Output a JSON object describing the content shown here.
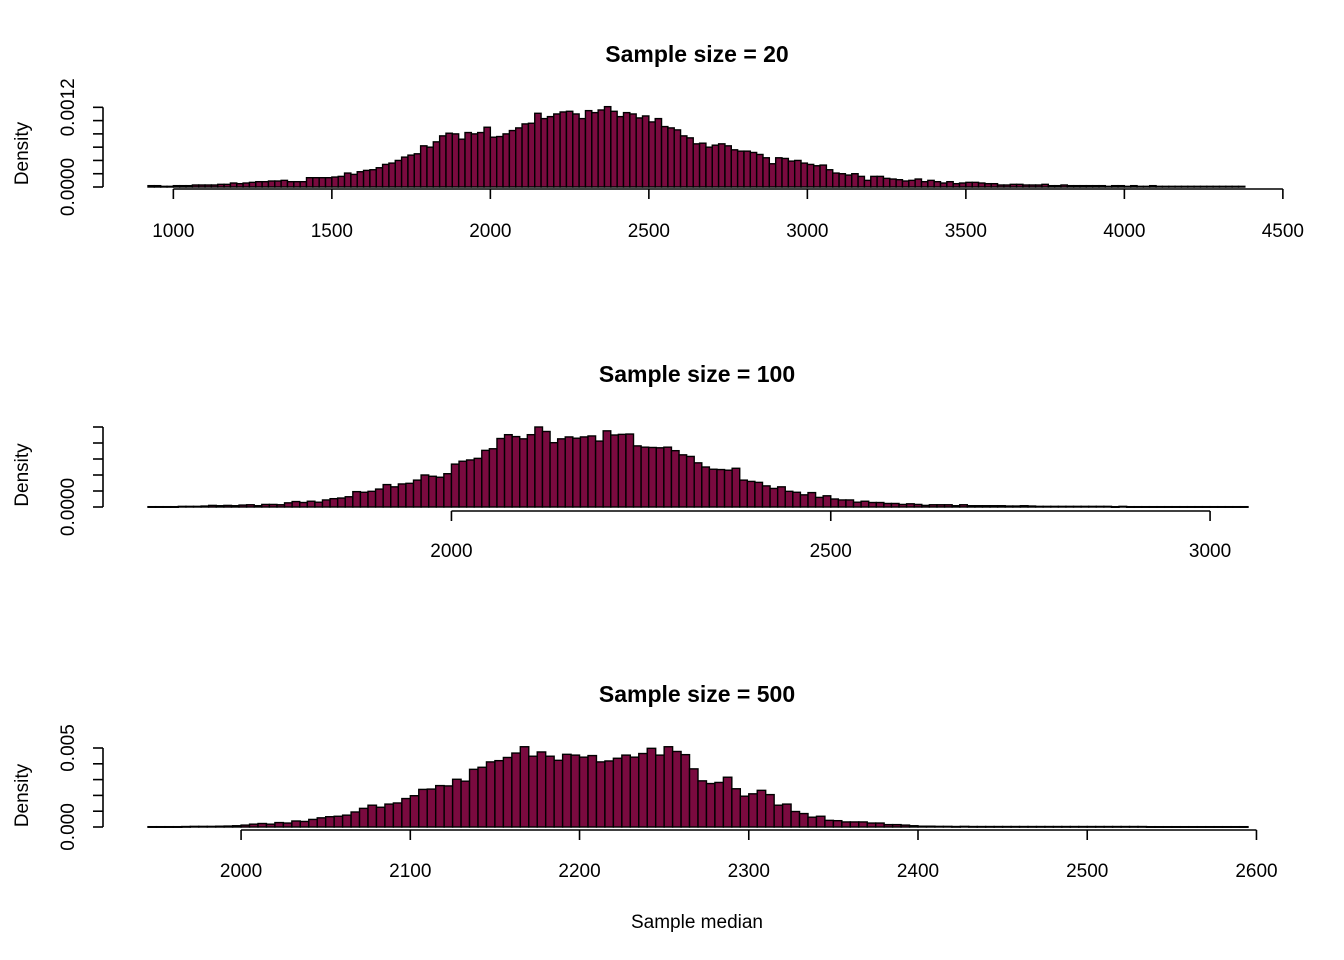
{
  "figure": {
    "xlabel": "Sample median",
    "bar_color": "#7a0a3f",
    "edge_color": "#000000"
  },
  "chart_data": [
    {
      "type": "histogram",
      "title": "Sample size = 20",
      "xlabel": "",
      "ylabel": "Density",
      "x_ticks": [
        1000,
        1500,
        2000,
        2500,
        3000,
        3500,
        4000,
        4500
      ],
      "x_tick_labels": [
        "1000",
        "1500",
        "2000",
        "2500",
        "3000",
        "3500",
        "4000",
        "4500"
      ],
      "y_ticks": [
        0,
        0.0002,
        0.0004,
        0.0006,
        0.0008,
        0.001,
        0.0012
      ],
      "y_tick_labels": [
        "0.0000",
        "",
        "",
        "",
        "",
        "",
        "0.0012"
      ],
      "xlim": [
        920,
        4390
      ],
      "ylim": [
        0,
        0.00125
      ],
      "bin_start": 920,
      "bin_width": 20,
      "values": [
        2e-05,
        2e-05,
        1e-05,
        1e-05,
        2e-05,
        2e-05,
        2e-05,
        3e-05,
        3e-05,
        3e-05,
        3e-05,
        4e-05,
        4e-05,
        6e-05,
        5e-05,
        6e-05,
        7e-05,
        8e-05,
        8e-05,
        9e-05,
        9e-05,
        0.0001,
        8e-05,
        8e-05,
        8e-05,
        0.00014,
        0.00014,
        0.00014,
        0.00014,
        0.00015,
        0.00016,
        0.00021,
        0.00019,
        0.00023,
        0.00025,
        0.00026,
        0.00029,
        0.00034,
        0.00036,
        0.0004,
        0.00045,
        0.00048,
        0.0005,
        0.00062,
        0.0006,
        0.00068,
        0.00077,
        0.00081,
        0.0008,
        0.00072,
        0.00082,
        0.0008,
        0.00082,
        0.0009,
        0.00075,
        0.00076,
        0.0008,
        0.00085,
        0.00089,
        0.00095,
        0.00096,
        0.00111,
        0.00103,
        0.00106,
        0.0011,
        0.00113,
        0.00114,
        0.0011,
        0.00103,
        0.00115,
        0.00112,
        0.00116,
        0.00121,
        0.00114,
        0.00106,
        0.00112,
        0.0011,
        0.00104,
        0.00107,
        0.00098,
        0.00103,
        0.00091,
        0.00089,
        0.00086,
        0.00077,
        0.00074,
        0.00065,
        0.00066,
        0.0006,
        0.00063,
        0.00065,
        0.00062,
        0.00056,
        0.00054,
        0.00054,
        0.00052,
        0.00049,
        0.00044,
        0.00035,
        0.00044,
        0.00043,
        0.00039,
        0.0004,
        0.00036,
        0.00034,
        0.00032,
        0.00033,
        0.00026,
        0.00021,
        0.0002,
        0.00018,
        0.0002,
        0.00016,
        0.0001,
        0.00016,
        0.00016,
        0.00013,
        0.00012,
        0.00011,
        9e-05,
        0.0001,
        0.00012,
        8e-05,
        0.0001,
        8e-05,
        6e-05,
        8e-05,
        5e-05,
        6e-05,
        7e-05,
        7e-05,
        6e-05,
        5e-05,
        5e-05,
        3e-05,
        3e-05,
        4e-05,
        4e-05,
        3e-05,
        3e-05,
        3e-05,
        4e-05,
        2e-05,
        2e-05,
        3e-05,
        2e-05,
        2e-05,
        2e-05,
        2e-05,
        2e-05,
        2e-05,
        1e-05,
        2e-05,
        2e-05,
        1e-05,
        2e-05,
        1e-05,
        1e-05,
        2e-05,
        1e-05,
        1e-05,
        1e-05,
        1e-05,
        1e-05,
        1e-05,
        1e-05,
        1e-05,
        1e-05,
        1e-05,
        1e-05,
        1e-05,
        1e-05,
        1e-05
      ]
    },
    {
      "type": "histogram",
      "title": "Sample size = 100",
      "xlabel": "",
      "ylabel": "Density",
      "x_ticks": [
        2000,
        2500,
        3000
      ],
      "x_tick_labels": [
        "2000",
        "2500",
        "3000"
      ],
      "y_ticks": [
        0,
        0.0005,
        0.001,
        0.0015,
        0.002,
        0.0025
      ],
      "y_tick_labels": [
        "0.0000",
        "",
        "",
        "",
        "",
        ""
      ],
      "xlim": [
        1600,
        3050
      ],
      "ylim": [
        0,
        0.0025
      ],
      "bin_start": 1600,
      "bin_width": 10,
      "values": [
        1e-05,
        1e-05,
        1e-05,
        1e-05,
        2e-05,
        2e-05,
        2e-05,
        3e-05,
        5e-05,
        4e-05,
        5e-05,
        4e-05,
        6e-05,
        7e-05,
        4e-05,
        8e-05,
        8e-05,
        7e-05,
        0.00013,
        0.00017,
        0.00014,
        0.00018,
        0.00015,
        0.00022,
        0.00026,
        0.00028,
        0.00032,
        0.00048,
        0.00046,
        0.00049,
        0.00056,
        0.0007,
        0.00063,
        0.00072,
        0.00074,
        0.00084,
        0.001,
        0.00096,
        0.00093,
        0.00104,
        0.00134,
        0.00143,
        0.00147,
        0.00152,
        0.00177,
        0.00182,
        0.00214,
        0.00226,
        0.0022,
        0.00213,
        0.00226,
        0.0025,
        0.00236,
        0.00201,
        0.00213,
        0.00219,
        0.00215,
        0.00219,
        0.00222,
        0.00206,
        0.00238,
        0.00225,
        0.00227,
        0.00228,
        0.00191,
        0.00187,
        0.00186,
        0.00185,
        0.00187,
        0.00176,
        0.00163,
        0.00158,
        0.00138,
        0.00125,
        0.00118,
        0.00117,
        0.00115,
        0.00121,
        0.00084,
        0.0008,
        0.00077,
        0.00066,
        0.00058,
        0.00063,
        0.00049,
        0.00046,
        0.00038,
        0.00045,
        0.0003,
        0.00035,
        0.00025,
        0.00022,
        0.00022,
        0.00015,
        0.00018,
        0.00014,
        0.00014,
        0.00011,
        0.00011,
        8e-05,
        0.0001,
        8e-05,
        5e-05,
        7e-05,
        7e-05,
        7e-05,
        4e-05,
        7e-05,
        4e-05,
        4e-05,
        4e-05,
        4e-05,
        4e-05,
        3e-05,
        3e-05,
        4e-05,
        3e-05,
        2e-05,
        2e-05,
        2e-05,
        2e-05,
        2e-05,
        2e-05,
        2e-05,
        2e-05,
        2e-05,
        2e-05,
        1e-05,
        2e-05,
        1e-05,
        1e-05,
        1e-05,
        1e-05,
        1e-05,
        1e-05,
        1e-05,
        1e-05,
        1e-05,
        1e-05,
        1e-05,
        1e-05,
        1e-05,
        1e-05,
        1e-05,
        1e-05
      ]
    },
    {
      "type": "histogram",
      "title": "Sample size = 500",
      "xlabel": "Sample median",
      "ylabel": "Density",
      "x_ticks": [
        2000,
        2100,
        2200,
        2300,
        2400,
        2500,
        2600
      ],
      "x_tick_labels": [
        "2000",
        "2100",
        "2200",
        "2300",
        "2400",
        "2500",
        "2600"
      ],
      "y_ticks": [
        0,
        0.001,
        0.002,
        0.003,
        0.004,
        0.005
      ],
      "y_tick_labels": [
        "0.000",
        "",
        "",
        "",
        "",
        "0.005"
      ],
      "xlim": [
        1945,
        2595
      ],
      "ylim": [
        0,
        0.005
      ],
      "bin_start": 1945,
      "bin_width": 5,
      "values": [
        2e-05,
        2e-05,
        2e-05,
        2e-05,
        3e-05,
        4e-05,
        4e-05,
        4e-05,
        5e-05,
        6e-05,
        8e-05,
        0.00012,
        0.00018,
        0.00022,
        0.00018,
        0.00028,
        0.00025,
        0.00038,
        0.00035,
        0.00048,
        0.00058,
        0.00065,
        0.00068,
        0.00075,
        0.00095,
        0.00118,
        0.00138,
        0.00125,
        0.00145,
        0.00152,
        0.0018,
        0.00198,
        0.00238,
        0.0024,
        0.00262,
        0.0026,
        0.00302,
        0.0029,
        0.00365,
        0.00378,
        0.00412,
        0.0042,
        0.0044,
        0.00468,
        0.00508,
        0.00448,
        0.00475,
        0.00448,
        0.00422,
        0.0046,
        0.00455,
        0.00442,
        0.00452,
        0.00412,
        0.00418,
        0.00435,
        0.00455,
        0.00442,
        0.00465,
        0.00498,
        0.00455,
        0.00508,
        0.00478,
        0.00458,
        0.00368,
        0.00292,
        0.00275,
        0.00282,
        0.00315,
        0.00242,
        0.00195,
        0.0021,
        0.00232,
        0.00205,
        0.00138,
        0.00145,
        0.00098,
        0.00085,
        0.00062,
        0.00068,
        0.00042,
        0.0004,
        0.00032,
        0.00032,
        0.00032,
        0.00025,
        0.00025,
        0.00015,
        0.00015,
        0.00012,
        8e-05,
        5e-05,
        5e-05,
        4e-05,
        4e-05,
        3e-05,
        4e-05,
        3e-05,
        3e-05,
        3e-05,
        3e-05,
        3e-05,
        3e-05,
        3e-05,
        3e-05,
        3e-05,
        3e-05,
        3e-05,
        3e-05,
        3e-05,
        3e-05,
        3e-05,
        3e-05,
        3e-05,
        3e-05,
        3e-05,
        3e-05,
        3e-05,
        2e-05,
        2e-05,
        2e-05,
        2e-05,
        2e-05,
        2e-05,
        2e-05,
        2e-05,
        2e-05,
        2e-05,
        2e-05,
        2e-05
      ]
    }
  ]
}
